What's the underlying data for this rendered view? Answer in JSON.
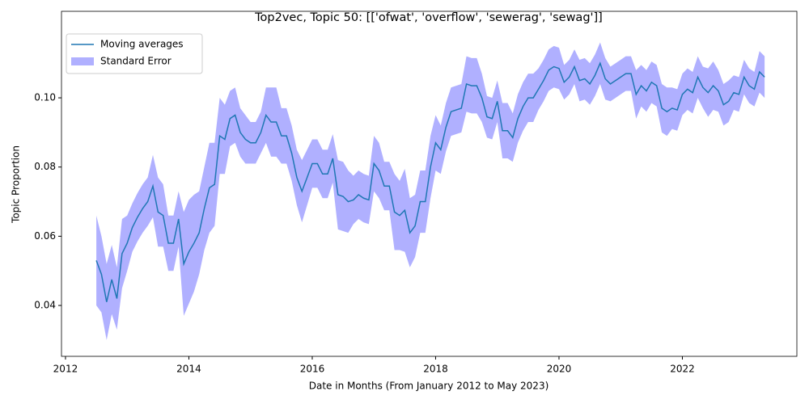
{
  "chart_data": {
    "type": "line",
    "title": "Top2vec, Topic 50: [['ofwat', 'overflow', 'sewerag', 'sewag']]",
    "xlabel": "Date in Months (From January 2012 to May 2023)",
    "ylabel": "Topic Proportion",
    "xlim": [
      2011.935,
      2023.856
    ],
    "ylim": [
      0.0253,
      0.125
    ],
    "xticks": [
      2012,
      2014,
      2016,
      2018,
      2020,
      2022
    ],
    "yticks": [
      0.04,
      0.06,
      0.08,
      {
        "value": 0.1,
        "label": "0.10"
      }
    ],
    "legend": "upper left",
    "x": [
      2012.5,
      2012.583,
      2012.667,
      2012.75,
      2012.833,
      2012.917,
      2013,
      2013.083,
      2013.167,
      2013.25,
      2013.333,
      2013.417,
      2013.5,
      2013.583,
      2013.667,
      2013.75,
      2013.833,
      2013.917,
      2014,
      2014.083,
      2014.167,
      2014.25,
      2014.333,
      2014.417,
      2014.5,
      2014.583,
      2014.667,
      2014.75,
      2014.833,
      2014.917,
      2015,
      2015.083,
      2015.167,
      2015.25,
      2015.333,
      2015.417,
      2015.5,
      2015.583,
      2015.667,
      2015.75,
      2015.833,
      2015.917,
      2016,
      2016.083,
      2016.167,
      2016.25,
      2016.333,
      2016.417,
      2016.5,
      2016.583,
      2016.667,
      2016.75,
      2016.833,
      2016.917,
      2017,
      2017.083,
      2017.167,
      2017.25,
      2017.333,
      2017.417,
      2017.5,
      2017.583,
      2017.667,
      2017.75,
      2017.833,
      2017.917,
      2018,
      2018.083,
      2018.167,
      2018.25,
      2018.333,
      2018.417,
      2018.5,
      2018.583,
      2018.667,
      2018.75,
      2018.833,
      2018.917,
      2019,
      2019.083,
      2019.167,
      2019.25,
      2019.333,
      2019.417,
      2019.5,
      2019.583,
      2019.667,
      2019.75,
      2019.833,
      2019.917,
      2020,
      2020.083,
      2020.167,
      2020.25,
      2020.333,
      2020.417,
      2020.5,
      2020.583,
      2020.667,
      2020.75,
      2020.833,
      2020.917,
      2021,
      2021.083,
      2021.167,
      2021.25,
      2021.333,
      2021.417,
      2021.5,
      2021.583,
      2021.667,
      2021.75,
      2021.833,
      2021.917,
      2022,
      2022.083,
      2022.167,
      2022.25,
      2022.333,
      2022.417,
      2022.5,
      2022.583,
      2022.667,
      2022.75,
      2022.833,
      2022.917,
      2023,
      2023.083,
      2023.167,
      2023.25,
      2023.333
    ],
    "series": [
      {
        "name": "Moving averages",
        "color": "#1f77b4",
        "values": [
          0.053,
          0.049,
          0.041,
          0.0475,
          0.042,
          0.055,
          0.058,
          0.0625,
          0.0655,
          0.068,
          0.07,
          0.0745,
          0.067,
          0.066,
          0.058,
          0.058,
          0.065,
          0.052,
          0.0555,
          0.058,
          0.061,
          0.068,
          0.074,
          0.075,
          0.089,
          0.088,
          0.094,
          0.095,
          0.09,
          0.088,
          0.087,
          0.087,
          0.09,
          0.095,
          0.093,
          0.093,
          0.089,
          0.089,
          0.084,
          0.077,
          0.073,
          0.077,
          0.081,
          0.081,
          0.078,
          0.078,
          0.0825,
          0.072,
          0.0715,
          0.07,
          0.0705,
          0.072,
          0.071,
          0.0705,
          0.081,
          0.079,
          0.0745,
          0.0745,
          0.067,
          0.066,
          0.0675,
          0.061,
          0.063,
          0.07,
          0.07,
          0.08,
          0.087,
          0.085,
          0.0915,
          0.096,
          0.0965,
          0.097,
          0.104,
          0.1035,
          0.1035,
          0.1,
          0.0945,
          0.094,
          0.099,
          0.0905,
          0.0905,
          0.0885,
          0.094,
          0.0975,
          0.1,
          0.1,
          0.1025,
          0.105,
          0.108,
          0.109,
          0.1085,
          0.1045,
          0.106,
          0.109,
          0.105,
          0.1055,
          0.104,
          0.1065,
          0.11,
          0.1055,
          0.104,
          0.105,
          0.106,
          0.107,
          0.107,
          0.101,
          0.1035,
          0.102,
          0.1045,
          0.1035,
          0.097,
          0.096,
          0.097,
          0.0965,
          0.101,
          0.1025,
          0.1015,
          0.106,
          0.103,
          0.1015,
          0.1035,
          0.102,
          0.098,
          0.099,
          0.1015,
          0.101,
          0.106,
          0.1035,
          0.1025,
          0.1075,
          0.106
        ]
      }
    ],
    "band": {
      "name": "Standard Error",
      "color": "#b0b0ff",
      "errors": [
        0.013,
        0.011,
        0.011,
        0.01,
        0.009,
        0.01,
        0.008,
        0.007,
        0.007,
        0.007,
        0.007,
        0.009,
        0.01,
        0.009,
        0.008,
        0.008,
        0.008,
        0.015,
        0.015,
        0.014,
        0.012,
        0.012,
        0.013,
        0.012,
        0.011,
        0.01,
        0.008,
        0.008,
        0.007,
        0.007,
        0.006,
        0.006,
        0.006,
        0.008,
        0.01,
        0.01,
        0.008,
        0.008,
        0.008,
        0.008,
        0.009,
        0.008,
        0.007,
        0.007,
        0.007,
        0.007,
        0.007,
        0.01,
        0.01,
        0.009,
        0.007,
        0.007,
        0.007,
        0.007,
        0.008,
        0.008,
        0.007,
        0.007,
        0.011,
        0.01,
        0.012,
        0.01,
        0.009,
        0.009,
        0.009,
        0.009,
        0.008,
        0.007,
        0.007,
        0.007,
        0.007,
        0.007,
        0.008,
        0.008,
        0.008,
        0.007,
        0.006,
        0.006,
        0.006,
        0.008,
        0.008,
        0.007,
        0.007,
        0.007,
        0.007,
        0.007,
        0.006,
        0.006,
        0.006,
        0.006,
        0.006,
        0.005,
        0.005,
        0.005,
        0.006,
        0.006,
        0.006,
        0.006,
        0.006,
        0.006,
        0.005,
        0.005,
        0.005,
        0.005,
        0.005,
        0.007,
        0.006,
        0.006,
        0.006,
        0.006,
        0.007,
        0.007,
        0.006,
        0.006,
        0.006,
        0.006,
        0.006,
        0.006,
        0.006,
        0.007,
        0.007,
        0.006,
        0.006,
        0.006,
        0.005,
        0.005,
        0.005,
        0.005,
        0.005,
        0.006,
        0.006
      ]
    }
  }
}
